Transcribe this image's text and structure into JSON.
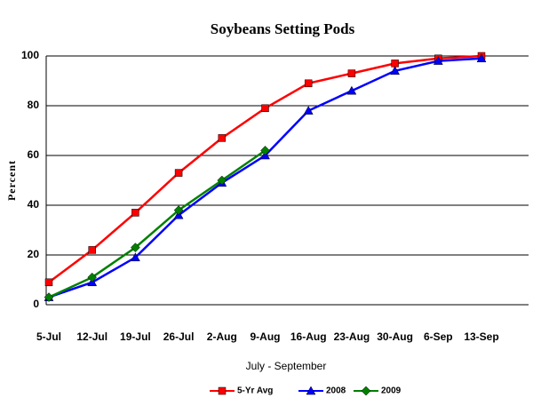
{
  "chart_data": {
    "type": "line",
    "title": "Soybeans Setting Pods",
    "xlabel": "July - September",
    "ylabel": "Percent",
    "categories": [
      "5-Jul",
      "12-Jul",
      "19-Jul",
      "26-Jul",
      "2-Aug",
      "9-Aug",
      "16-Aug",
      "23-Aug",
      "30-Aug",
      "6-Sep",
      "13-Sep"
    ],
    "series": [
      {
        "name": "5-Yr Avg",
        "color": "#ff0000",
        "marker": "square",
        "values": [
          9,
          22,
          37,
          53,
          67,
          79,
          89,
          93,
          97,
          99,
          100
        ]
      },
      {
        "name": "2008",
        "color": "#0000ff",
        "marker": "triangle",
        "values": [
          3,
          9,
          19,
          36,
          49,
          60,
          78,
          86,
          94,
          98,
          99
        ]
      },
      {
        "name": "2009",
        "color": "#008000",
        "marker": "diamond",
        "values": [
          3,
          11,
          23,
          38,
          50,
          62,
          null,
          null,
          null,
          null,
          null
        ]
      }
    ],
    "ylim": [
      0,
      100
    ],
    "yticks": [
      0,
      20,
      40,
      60,
      80,
      100
    ],
    "grid": true,
    "legend": "bottom"
  }
}
